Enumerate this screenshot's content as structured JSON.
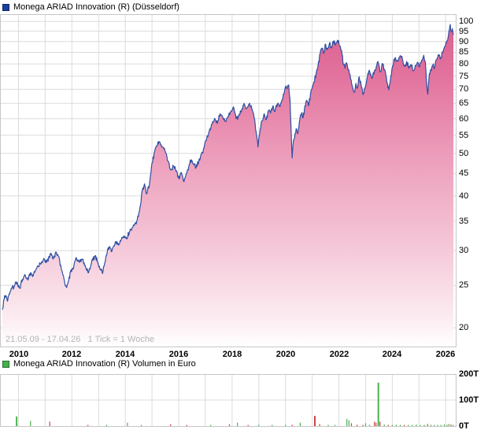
{
  "header": {
    "title": "Monega ARIAD Innovation (R) (Düsseldorf)",
    "legend_color": "#1a3e9e"
  },
  "volume_header": {
    "title": "Monega ARIAD Innovation (R) Volumen in Euro",
    "legend_color": "#43b14b"
  },
  "footer": {
    "date_range": "21.05.09 - 17.04.26",
    "tick_note": "1 Tick = 1 Woche"
  },
  "colors": {
    "line": "#2e4fa3",
    "grid": "#dcdcdc",
    "border": "#c6c6c6",
    "area_top": "#db5c8c",
    "area_bottom": "#ffffff",
    "volume_up": "#4cb050",
    "volume_down": "#cc4444"
  },
  "chart_data": [
    {
      "type": "area",
      "title": "Monega ARIAD Innovation (R) (Düsseldorf)",
      "x_label_note": "1 Tick = 1 Woche",
      "date_range": "21.05.09 - 17.04.26",
      "y_scale": "log",
      "ylim": [
        19,
        102
      ],
      "x_ticks": [
        2010,
        2012,
        2014,
        2016,
        2018,
        2020,
        2022,
        2024,
        2026
      ],
      "y_ticks": [
        20,
        25,
        30,
        35,
        40,
        45,
        50,
        55,
        60,
        65,
        70,
        75,
        80,
        85,
        90,
        95,
        100
      ],
      "grid": true,
      "legend_position": "top-left",
      "points": [
        [
          2009.39,
          22.0
        ],
        [
          2009.46,
          23.2
        ],
        [
          2009.52,
          23.7
        ],
        [
          2009.58,
          23.0
        ],
        [
          2009.67,
          23.9
        ],
        [
          2009.75,
          24.6
        ],
        [
          2009.85,
          24.9
        ],
        [
          2009.95,
          25.4
        ],
        [
          2010.05,
          24.6
        ],
        [
          2010.15,
          25.8
        ],
        [
          2010.25,
          26.4
        ],
        [
          2010.35,
          25.7
        ],
        [
          2010.45,
          26.7
        ],
        [
          2010.55,
          26.3
        ],
        [
          2010.65,
          27.1
        ],
        [
          2010.75,
          27.6
        ],
        [
          2010.85,
          28.1
        ],
        [
          2010.95,
          28.8
        ],
        [
          2011.05,
          28.2
        ],
        [
          2011.15,
          29.1
        ],
        [
          2011.22,
          29.6
        ],
        [
          2011.3,
          28.7
        ],
        [
          2011.4,
          29.8
        ],
        [
          2011.5,
          29.1
        ],
        [
          2011.6,
          27.3
        ],
        [
          2011.7,
          25.9
        ],
        [
          2011.8,
          24.7
        ],
        [
          2011.88,
          25.7
        ],
        [
          2011.95,
          26.9
        ],
        [
          2012.05,
          27.2
        ],
        [
          2012.15,
          28.9
        ],
        [
          2012.28,
          28.2
        ],
        [
          2012.4,
          28.7
        ],
        [
          2012.52,
          27.4
        ],
        [
          2012.62,
          26.7
        ],
        [
          2012.75,
          28.5
        ],
        [
          2012.87,
          29.2
        ],
        [
          2012.97,
          28.2
        ],
        [
          2013.07,
          27.2
        ],
        [
          2013.15,
          26.6
        ],
        [
          2013.28,
          29.2
        ],
        [
          2013.4,
          30.6
        ],
        [
          2013.5,
          29.9
        ],
        [
          2013.63,
          31.4
        ],
        [
          2013.75,
          30.9
        ],
        [
          2013.85,
          31.8
        ],
        [
          2013.95,
          32.4
        ],
        [
          2014.05,
          31.9
        ],
        [
          2014.15,
          33.0
        ],
        [
          2014.25,
          33.8
        ],
        [
          2014.35,
          34.4
        ],
        [
          2014.45,
          35.3
        ],
        [
          2014.55,
          37.6
        ],
        [
          2014.63,
          41.0
        ],
        [
          2014.72,
          42.6
        ],
        [
          2014.8,
          40.4
        ],
        [
          2014.9,
          42.2
        ],
        [
          2015.0,
          47.5
        ],
        [
          2015.1,
          50.5
        ],
        [
          2015.18,
          52.0
        ],
        [
          2015.28,
          53.1
        ],
        [
          2015.38,
          51.8
        ],
        [
          2015.5,
          50.3
        ],
        [
          2015.6,
          48.0
        ],
        [
          2015.7,
          45.8
        ],
        [
          2015.8,
          46.8
        ],
        [
          2015.92,
          45.6
        ],
        [
          2016.02,
          43.7
        ],
        [
          2016.1,
          45.2
        ],
        [
          2016.2,
          43.1
        ],
        [
          2016.3,
          45.0
        ],
        [
          2016.4,
          47.2
        ],
        [
          2016.48,
          48.3
        ],
        [
          2016.57,
          47.1
        ],
        [
          2016.65,
          46.4
        ],
        [
          2016.75,
          47.9
        ],
        [
          2016.85,
          49.8
        ],
        [
          2016.95,
          51.4
        ],
        [
          2017.05,
          54.0
        ],
        [
          2017.15,
          56.4
        ],
        [
          2017.25,
          58.3
        ],
        [
          2017.35,
          60.1
        ],
        [
          2017.45,
          58.5
        ],
        [
          2017.55,
          61.6
        ],
        [
          2017.65,
          60.5
        ],
        [
          2017.75,
          59.2
        ],
        [
          2017.85,
          60.8
        ],
        [
          2017.95,
          62.3
        ],
        [
          2018.05,
          63.8
        ],
        [
          2018.15,
          60.0
        ],
        [
          2018.25,
          61.0
        ],
        [
          2018.35,
          62.3
        ],
        [
          2018.45,
          65.0
        ],
        [
          2018.53,
          63.2
        ],
        [
          2018.62,
          64.6
        ],
        [
          2018.72,
          64.2
        ],
        [
          2018.82,
          60.6
        ],
        [
          2018.9,
          56.0
        ],
        [
          2018.97,
          51.7
        ],
        [
          2019.05,
          56.8
        ],
        [
          2019.12,
          59.3
        ],
        [
          2019.2,
          61.6
        ],
        [
          2019.28,
          59.7
        ],
        [
          2019.36,
          62.5
        ],
        [
          2019.44,
          61.8
        ],
        [
          2019.52,
          63.9
        ],
        [
          2019.6,
          62.3
        ],
        [
          2019.7,
          64.8
        ],
        [
          2019.78,
          63.9
        ],
        [
          2019.86,
          66.0
        ],
        [
          2019.94,
          68.3
        ],
        [
          2020.02,
          71.2
        ],
        [
          2020.07,
          70.5
        ],
        [
          2020.12,
          71.6
        ],
        [
          2020.17,
          66.0
        ],
        [
          2020.21,
          57.0
        ],
        [
          2020.25,
          48.8
        ],
        [
          2020.3,
          53.6
        ],
        [
          2020.36,
          55.5
        ],
        [
          2020.42,
          56.8
        ],
        [
          2020.46,
          55.4
        ],
        [
          2020.54,
          59.8
        ],
        [
          2020.6,
          61.7
        ],
        [
          2020.66,
          60.3
        ],
        [
          2020.73,
          64.2
        ],
        [
          2020.8,
          66.1
        ],
        [
          2020.86,
          64.2
        ],
        [
          2020.93,
          67.5
        ],
        [
          2021.0,
          70.5
        ],
        [
          2021.07,
          72.8
        ],
        [
          2021.14,
          75.5
        ],
        [
          2021.22,
          79.5
        ],
        [
          2021.3,
          84.5
        ],
        [
          2021.37,
          86.8
        ],
        [
          2021.43,
          84.5
        ],
        [
          2021.5,
          88.8
        ],
        [
          2021.57,
          86.3
        ],
        [
          2021.65,
          89.3
        ],
        [
          2021.73,
          87.0
        ],
        [
          2021.8,
          90.2
        ],
        [
          2021.87,
          88.3
        ],
        [
          2021.93,
          89.8
        ],
        [
          2021.99,
          90.4
        ],
        [
          2022.05,
          87.8
        ],
        [
          2022.12,
          84.0
        ],
        [
          2022.17,
          79.7
        ],
        [
          2022.23,
          78.2
        ],
        [
          2022.28,
          80.5
        ],
        [
          2022.35,
          77.5
        ],
        [
          2022.42,
          75.6
        ],
        [
          2022.5,
          71.4
        ],
        [
          2022.58,
          68.9
        ],
        [
          2022.64,
          72.2
        ],
        [
          2022.7,
          70.8
        ],
        [
          2022.76,
          74.8
        ],
        [
          2022.83,
          72.0
        ],
        [
          2022.9,
          68.1
        ],
        [
          2022.97,
          70.2
        ],
        [
          2023.05,
          74.0
        ],
        [
          2023.14,
          77.4
        ],
        [
          2023.24,
          74.1
        ],
        [
          2023.33,
          77.0
        ],
        [
          2023.42,
          79.5
        ],
        [
          2023.48,
          80.4
        ],
        [
          2023.55,
          76.7
        ],
        [
          2023.63,
          80.2
        ],
        [
          2023.72,
          77.5
        ],
        [
          2023.8,
          72.5
        ],
        [
          2023.87,
          69.8
        ],
        [
          2023.95,
          75.2
        ],
        [
          2024.02,
          79.4
        ],
        [
          2024.1,
          82.4
        ],
        [
          2024.2,
          81.2
        ],
        [
          2024.3,
          83.6
        ],
        [
          2024.38,
          82.0
        ],
        [
          2024.46,
          79.0
        ],
        [
          2024.54,
          81.0
        ],
        [
          2024.62,
          78.2
        ],
        [
          2024.7,
          79.7
        ],
        [
          2024.78,
          77.2
        ],
        [
          2024.86,
          79.4
        ],
        [
          2024.94,
          80.7
        ],
        [
          2025.02,
          78.9
        ],
        [
          2025.1,
          81.5
        ],
        [
          2025.18,
          83.7
        ],
        [
          2025.24,
          80.8
        ],
        [
          2025.29,
          72.3
        ],
        [
          2025.33,
          68.2
        ],
        [
          2025.39,
          76.0
        ],
        [
          2025.46,
          77.2
        ],
        [
          2025.52,
          79.5
        ],
        [
          2025.58,
          78.2
        ],
        [
          2025.66,
          82.0
        ],
        [
          2025.74,
          83.6
        ],
        [
          2025.8,
          82.1
        ],
        [
          2025.88,
          85.2
        ],
        [
          2025.96,
          87.5
        ],
        [
          2026.03,
          89.5
        ],
        [
          2026.09,
          92.0
        ],
        [
          2026.14,
          95.5
        ],
        [
          2026.17,
          98.4
        ],
        [
          2026.21,
          94.8
        ],
        [
          2026.25,
          96.3
        ],
        [
          2026.29,
          93.2
        ]
      ]
    },
    {
      "type": "bar",
      "title": "Monega ARIAD Innovation (R) Volumen in Euro",
      "unit": "T (Tausend Euro)",
      "y_ticks_labels": [
        "0T",
        "100T",
        "200T"
      ],
      "ylim": [
        0,
        200
      ],
      "grid": true,
      "bars": [
        [
          2009.93,
          37,
          "up"
        ],
        [
          2010.45,
          20,
          "up"
        ],
        [
          2011.17,
          17,
          "down"
        ],
        [
          2012.6,
          3,
          "down"
        ],
        [
          2013.3,
          3,
          "up"
        ],
        [
          2014.08,
          13,
          "up"
        ],
        [
          2014.6,
          3,
          "up"
        ],
        [
          2015.7,
          7,
          "down"
        ],
        [
          2016.3,
          3,
          "down"
        ],
        [
          2017.2,
          3,
          "up"
        ],
        [
          2017.9,
          7,
          "down"
        ],
        [
          2018.2,
          13,
          "up"
        ],
        [
          2018.6,
          3,
          "down"
        ],
        [
          2019.0,
          4,
          "up"
        ],
        [
          2019.5,
          3,
          "up"
        ],
        [
          2020.0,
          3,
          "up"
        ],
        [
          2020.25,
          5,
          "down"
        ],
        [
          2020.55,
          13,
          "up"
        ],
        [
          2021.1,
          39,
          "down"
        ],
        [
          2021.28,
          8,
          "down"
        ],
        [
          2021.6,
          4,
          "up"
        ],
        [
          2021.85,
          4,
          "up"
        ],
        [
          2022.3,
          28,
          "up"
        ],
        [
          2022.38,
          22,
          "up"
        ],
        [
          2022.47,
          11,
          "down"
        ],
        [
          2022.68,
          5,
          "down"
        ],
        [
          2022.9,
          4,
          "down"
        ],
        [
          2023.0,
          11,
          "up"
        ],
        [
          2023.15,
          5,
          "up"
        ],
        [
          2023.33,
          17,
          "down"
        ],
        [
          2023.39,
          13,
          "down"
        ],
        [
          2023.48,
          167,
          "up"
        ],
        [
          2023.54,
          17,
          "down"
        ],
        [
          2023.7,
          6,
          "up"
        ],
        [
          2023.85,
          4,
          "down"
        ],
        [
          2024.0,
          3,
          "up"
        ],
        [
          2024.15,
          5,
          "up"
        ],
        [
          2024.3,
          3,
          "up"
        ],
        [
          2024.45,
          3,
          "down"
        ],
        [
          2024.6,
          4,
          "up"
        ],
        [
          2024.75,
          3,
          "up"
        ],
        [
          2024.9,
          6,
          "up"
        ],
        [
          2025.05,
          4,
          "up"
        ],
        [
          2025.2,
          3,
          "up"
        ],
        [
          2025.32,
          8,
          "down"
        ],
        [
          2025.45,
          5,
          "up"
        ],
        [
          2025.58,
          3,
          "up"
        ],
        [
          2025.7,
          4,
          "up"
        ],
        [
          2025.82,
          4,
          "up"
        ],
        [
          2025.95,
          6,
          "up"
        ],
        [
          2026.05,
          5,
          "up"
        ],
        [
          2026.12,
          8,
          "up"
        ],
        [
          2026.2,
          6,
          "down"
        ],
        [
          2026.28,
          4,
          "up"
        ]
      ]
    }
  ]
}
